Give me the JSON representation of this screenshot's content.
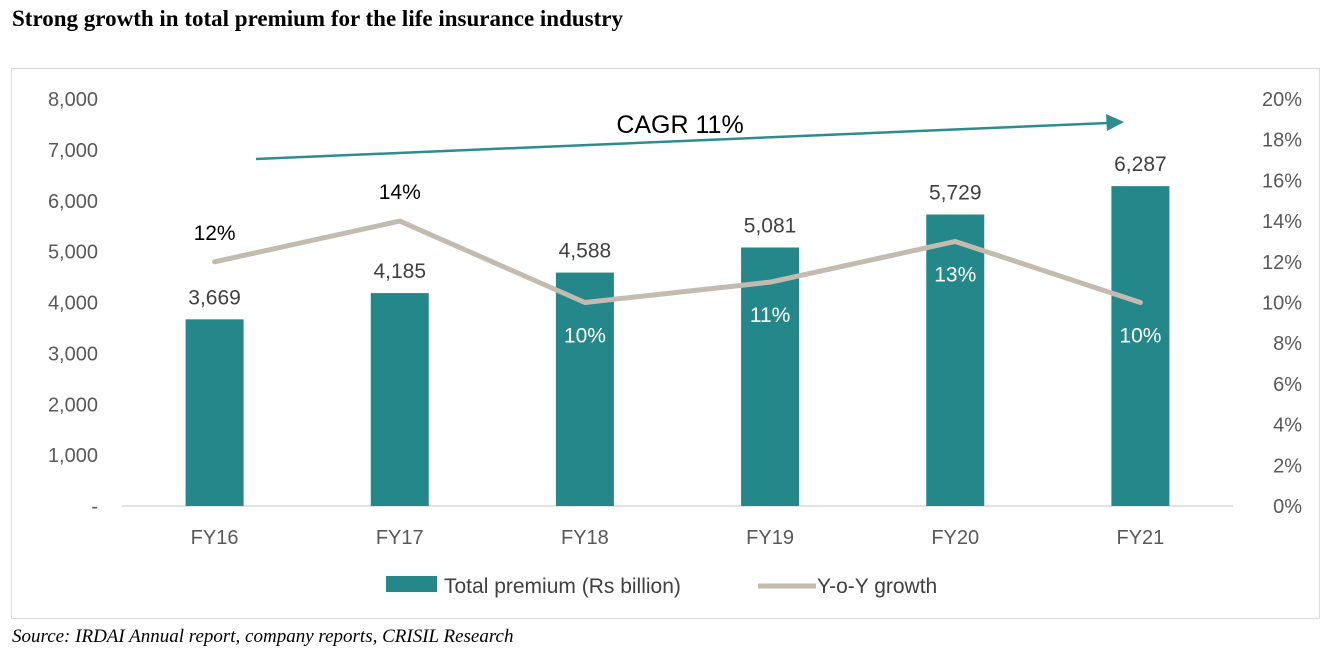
{
  "title": "Strong growth in total premium for the life insurance industry",
  "source": "Source: IRDAI Annual report, company reports, CRISIL Research",
  "chart_data": {
    "type": "bar",
    "categories": [
      "FY16",
      "FY17",
      "FY18",
      "FY19",
      "FY20",
      "FY21"
    ],
    "series": [
      {
        "name": "Total premium (Rs billion)",
        "type": "bar",
        "axis": "left",
        "color": "#24878a",
        "values": [
          3669,
          4185,
          4588,
          5081,
          5729,
          6287
        ],
        "labels": [
          "3,669",
          "4,185",
          "4,588",
          "5,081",
          "5,729",
          "6,287"
        ]
      },
      {
        "name": "Y-o-Y growth",
        "type": "line",
        "axis": "right",
        "color": "#c3bab0",
        "values": [
          12,
          14,
          10,
          11,
          13,
          10
        ],
        "labels": [
          "12%",
          "14%",
          "10%",
          "11%",
          "13%",
          "10%"
        ]
      }
    ],
    "y_left": {
      "ylim": [
        0,
        8000
      ],
      "ticks": [
        0,
        1000,
        2000,
        3000,
        4000,
        5000,
        6000,
        7000,
        8000
      ],
      "tick_labels": [
        "-",
        "1,000",
        "2,000",
        "3,000",
        "4,000",
        "5,000",
        "6,000",
        "7,000",
        "8,000"
      ]
    },
    "y_right": {
      "ylim": [
        0,
        20
      ],
      "ticks": [
        0,
        2,
        4,
        6,
        8,
        10,
        12,
        14,
        16,
        18,
        20
      ],
      "tick_labels": [
        "0%",
        "2%",
        "4%",
        "6%",
        "8%",
        "10%",
        "12%",
        "14%",
        "16%",
        "18%",
        "20%"
      ]
    },
    "annotation": {
      "text": "CAGR 11%",
      "color": "#2e8b8e"
    },
    "grid": false,
    "legend": "bottom"
  }
}
